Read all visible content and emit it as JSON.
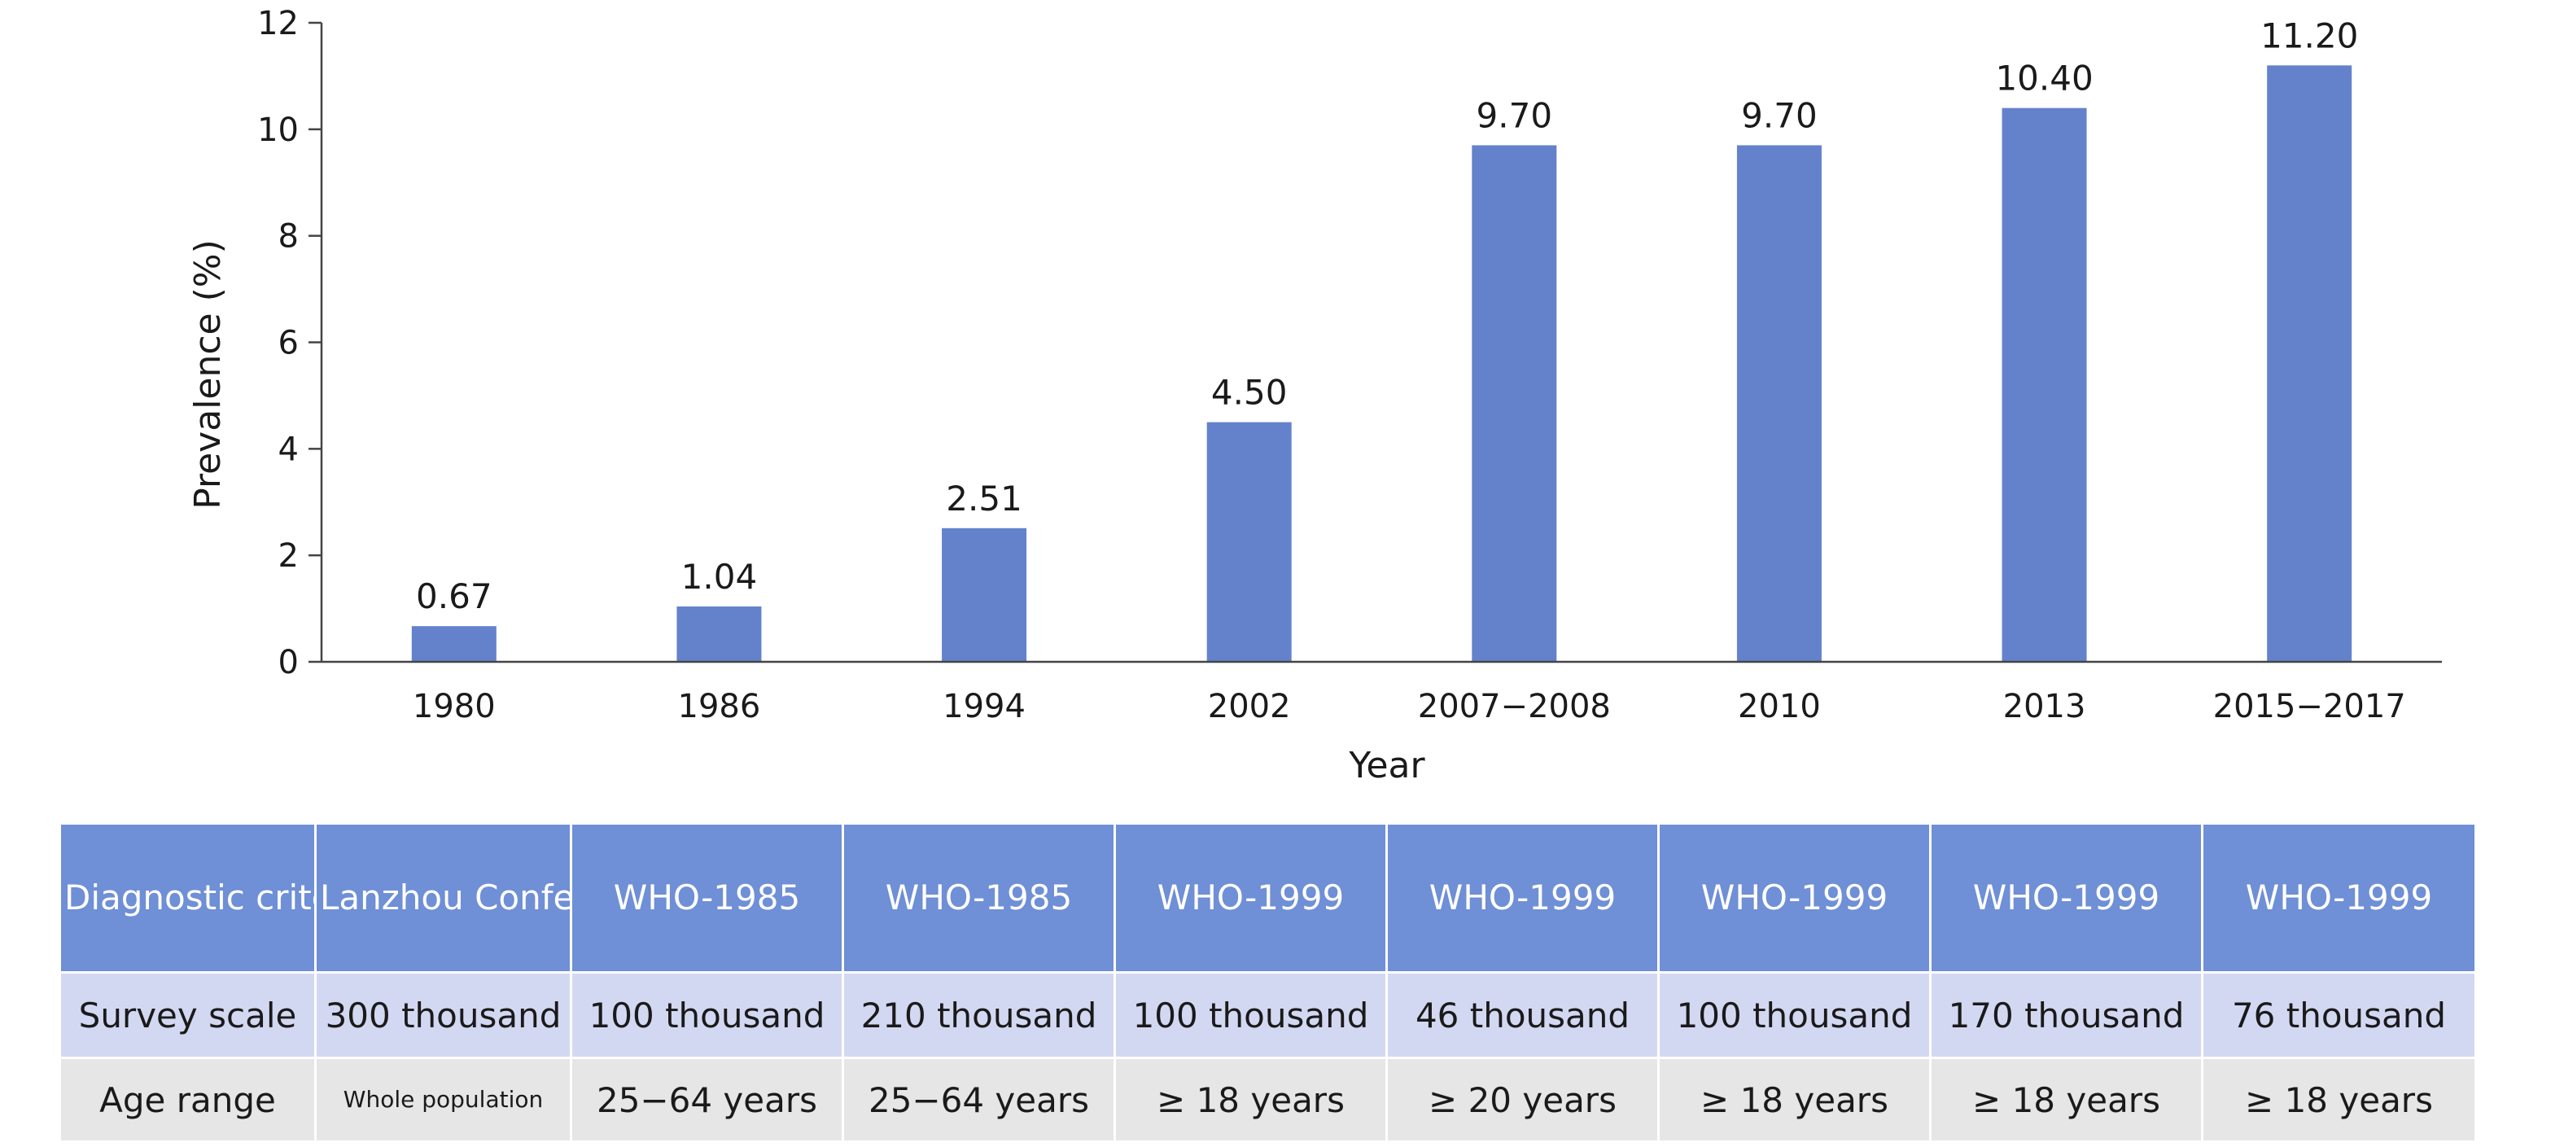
{
  "chart_data": {
    "type": "bar",
    "categories": [
      "1980",
      "1986",
      "1994",
      "2002",
      "2007−2008",
      "2010",
      "2013",
      "2015−2017"
    ],
    "values": [
      0.67,
      1.04,
      2.51,
      4.5,
      9.7,
      9.7,
      10.4,
      11.2
    ],
    "value_labels": [
      "0.67",
      "1.04",
      "2.51",
      "4.50",
      "9.70",
      "9.70",
      "10.40",
      "11.20"
    ],
    "title": "",
    "xlabel": "Year",
    "ylabel": "Prevalence (%)",
    "ylim": [
      0,
      12
    ],
    "yticks": [
      "0",
      "2",
      "4",
      "6",
      "8",
      "10",
      "12"
    ],
    "bar_color": "#6482cb",
    "grid": false
  },
  "table": {
    "rows": [
      {
        "label": "Diagnostic criteria",
        "cells": [
          "Lanzhou Conference Standards",
          "WHO-1985",
          "WHO-1985",
          "WHO-1999",
          "WHO-1999",
          "WHO-1999",
          "WHO-1999",
          "WHO-1999"
        ]
      },
      {
        "label": "Survey scale",
        "cells": [
          "300 thousand",
          "100 thousand",
          "210 thousand",
          "100 thousand",
          "46 thousand",
          "100 thousand",
          "170 thousand",
          "76 thousand"
        ]
      },
      {
        "label": "Age range",
        "cells": [
          "Whole population",
          "25−64 years",
          "25−64 years",
          "≥ 18 years",
          "≥ 20 years",
          "≥ 18 years",
          "≥ 18 years",
          "≥ 18 years"
        ]
      }
    ],
    "header_color": "#6f8fd6",
    "scale_row_color": "#d3d8f2",
    "age_row_color": "#e6e6e6"
  }
}
